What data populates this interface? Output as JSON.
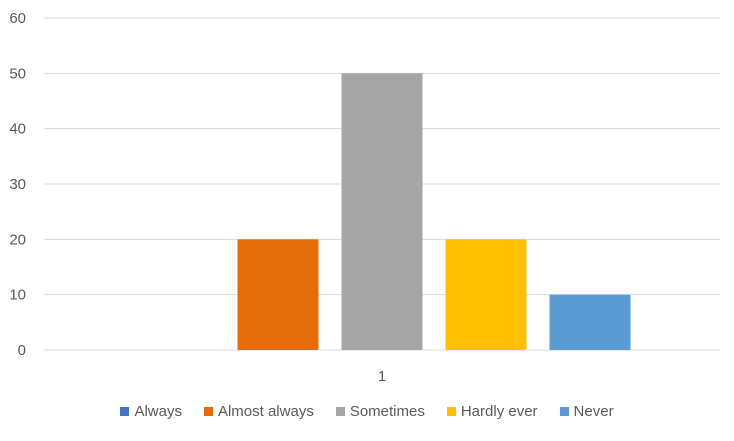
{
  "chart_data": {
    "type": "bar",
    "categories": [
      "1"
    ],
    "series": [
      {
        "name": "Always",
        "values": [
          0
        ],
        "color": "#4472C4"
      },
      {
        "name": "Almost always",
        "values": [
          20
        ],
        "color": "#E46C0A"
      },
      {
        "name": "Sometimes",
        "values": [
          50
        ],
        "color": "#A5A5A5"
      },
      {
        "name": "Hardly ever",
        "values": [
          20
        ],
        "color": "#FFC000"
      },
      {
        "name": "Never",
        "values": [
          10
        ],
        "color": "#5B9BD5"
      }
    ],
    "yticks": [
      "0",
      "10",
      "20",
      "30",
      "40",
      "50",
      "60"
    ],
    "ylim": [
      0,
      60
    ],
    "grid": true,
    "legend": "bottom"
  }
}
